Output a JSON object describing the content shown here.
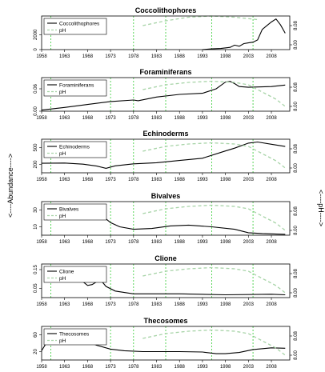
{
  "figure": {
    "left_label": "<----Abundance---->",
    "right_label": "<----pH---->"
  },
  "style": {
    "abundance_color": "#000000",
    "ph_color": "#a8d4a8",
    "gridline_color": "#33cc33"
  },
  "x_ticks": [
    "1958",
    "1963",
    "1968",
    "1973",
    "1978",
    "1983",
    "1988",
    "1993",
    "1998",
    "2003",
    "2008"
  ],
  "chart_data": [
    {
      "type": "line",
      "title": "Coccolithophores",
      "legend": [
        "Coccolithophores",
        "pH"
      ],
      "xlim": [
        1958,
        2012
      ],
      "ylim": [
        0,
        4500
      ],
      "y_ticks": [
        "0",
        "2000"
      ],
      "y2lim": [
        7.98,
        8.12
      ],
      "y2_ticks": [
        "8.00",
        "8.08"
      ],
      "vlines": [
        1960,
        1978,
        1985,
        1995,
        2004
      ],
      "series": [
        {
          "name": "Coccolithophores",
          "axis": "left",
          "x": [
            1993,
            1995,
            1997,
            1999,
            2000,
            2001,
            2002,
            2003,
            2004,
            2005,
            2006,
            2007,
            2008,
            2009,
            2010,
            2011
          ],
          "y": [
            0,
            100,
            150,
            300,
            600,
            450,
            800,
            900,
            1000,
            1300,
            2700,
            3200,
            3700,
            4100,
            3300,
            2200
          ]
        },
        {
          "name": "pH",
          "axis": "right",
          "x": [
            1980,
            1985,
            1990,
            1995,
            2000,
            2005
          ],
          "y": [
            8.08,
            8.1,
            8.115,
            8.12,
            8.115,
            8.105
          ]
        }
      ]
    },
    {
      "type": "line",
      "title": "Foraminiferans",
      "legend": [
        "Foraminiferans",
        "pH"
      ],
      "xlim": [
        1958,
        2012
      ],
      "ylim": [
        0,
        0.09
      ],
      "y_ticks": [
        "0.00",
        "0.06"
      ],
      "y2lim": [
        7.98,
        8.12
      ],
      "y2_ticks": [
        "8.00",
        "8.08"
      ],
      "vlines": [
        1960,
        1973,
        1978,
        1985,
        1995,
        2004
      ],
      "series": [
        {
          "name": "Foraminiferans",
          "axis": "left",
          "x": [
            1958,
            1963,
            1968,
            1973,
            1978,
            1979,
            1983,
            1988,
            1993,
            1996,
            1998,
            1999,
            2000,
            2001,
            2003,
            2008,
            2011
          ],
          "y": [
            0.003,
            0.01,
            0.018,
            0.026,
            0.03,
            0.028,
            0.038,
            0.045,
            0.048,
            0.06,
            0.078,
            0.08,
            0.074,
            0.066,
            0.064,
            0.066,
            0.07
          ]
        },
        {
          "name": "pH",
          "axis": "right",
          "x": [
            1980,
            1985,
            1990,
            1995,
            2000,
            2003,
            2006,
            2009,
            2011
          ],
          "y": [
            8.07,
            8.09,
            8.1,
            8.105,
            8.1,
            8.09,
            8.06,
            8.03,
            8.0
          ]
        }
      ]
    },
    {
      "type": "line",
      "title": "Echinoderms",
      "legend": [
        "Echinoderms",
        "pH"
      ],
      "xlim": [
        1958,
        2012
      ],
      "ylim": [
        50,
        650
      ],
      "y_ticks": [
        "200",
        "500"
      ],
      "y2lim": [
        7.98,
        8.12
      ],
      "y2_ticks": [
        "8.00",
        "8.08"
      ],
      "vlines": [
        1960,
        1973,
        1978,
        1985,
        1995,
        2004
      ],
      "series": [
        {
          "name": "Echinoderms",
          "axis": "left",
          "x": [
            1958,
            1963,
            1967,
            1970,
            1972,
            1974,
            1978,
            1983,
            1988,
            1993,
            1998,
            2000,
            2003,
            2005,
            2008,
            2011
          ],
          "y": [
            220,
            225,
            205,
            170,
            130,
            175,
            210,
            230,
            270,
            310,
            440,
            490,
            580,
            600,
            560,
            520
          ]
        },
        {
          "name": "pH",
          "axis": "right",
          "x": [
            1980,
            1985,
            1990,
            1995,
            2000,
            2003,
            2006,
            2009,
            2011
          ],
          "y": [
            8.07,
            8.09,
            8.1,
            8.105,
            8.1,
            8.09,
            8.06,
            8.03,
            8.0
          ]
        }
      ]
    },
    {
      "type": "line",
      "title": "Bivalves",
      "legend": [
        "Bivalves",
        "pH"
      ],
      "xlim": [
        1958,
        2012
      ],
      "ylim": [
        0,
        40
      ],
      "y_ticks": [
        "10",
        "30"
      ],
      "y2lim": [
        7.98,
        8.12
      ],
      "y2_ticks": [
        "8.00",
        "8.08"
      ],
      "vlines": [
        1960,
        1973,
        1978,
        1985,
        1995,
        2004
      ],
      "series": [
        {
          "name": "Bivalves",
          "axis": "left",
          "x": [
            1965,
            1968,
            1971,
            1973,
            1975,
            1978,
            1982,
            1986,
            1990,
            1995,
            2000,
            2003,
            2006,
            2011
          ],
          "y": [
            33,
            30,
            24,
            15,
            10,
            7,
            8,
            11,
            12,
            10,
            7,
            3,
            2,
            1
          ]
        },
        {
          "name": "pH",
          "axis": "right",
          "x": [
            1980,
            1985,
            1990,
            1995,
            2000,
            2003,
            2006,
            2009,
            2011
          ],
          "y": [
            8.07,
            8.09,
            8.1,
            8.105,
            8.1,
            8.09,
            8.06,
            8.03,
            8.0
          ]
        }
      ]
    },
    {
      "type": "line",
      "title": "Clione",
      "legend": [
        "Clione",
        "pH"
      ],
      "xlim": [
        1958,
        2012
      ],
      "ylim": [
        0,
        0.18
      ],
      "y_ticks": [
        "0.05",
        "0.15"
      ],
      "y2lim": [
        7.98,
        8.12
      ],
      "y2_ticks": [
        "8.00",
        "8.08"
      ],
      "vlines": [
        1960,
        1973,
        1978,
        1985,
        1995,
        2004
      ],
      "series": [
        {
          "name": "Clione",
          "axis": "left",
          "x": [
            1965,
            1966,
            1967,
            1968,
            1969,
            1970,
            1971,
            1972,
            1974,
            1978,
            1988,
            1998,
            2008,
            2011
          ],
          "y": [
            0.13,
            0.11,
            0.085,
            0.065,
            0.07,
            0.085,
            0.09,
            0.06,
            0.035,
            0.02,
            0.02,
            0.015,
            0.018,
            0.015
          ]
        },
        {
          "name": "pH",
          "axis": "right",
          "x": [
            1980,
            1985,
            1990,
            1995,
            2000,
            2003,
            2006,
            2009,
            2011
          ],
          "y": [
            8.07,
            8.09,
            8.1,
            8.105,
            8.1,
            8.09,
            8.06,
            8.03,
            8.0
          ]
        }
      ]
    },
    {
      "type": "line",
      "title": "Thecosomes",
      "legend": [
        "Thecosomes",
        "pH"
      ],
      "xlim": [
        1958,
        2012
      ],
      "ylim": [
        0,
        80
      ],
      "y_ticks": [
        "20",
        "60"
      ],
      "y2lim": [
        7.98,
        8.12
      ],
      "y2_ticks": [
        "8.00",
        "8.08"
      ],
      "vlines": [
        1960,
        1973,
        1978,
        1985,
        1995,
        2004
      ],
      "series": [
        {
          "name": "Thecosomes",
          "axis": "left",
          "x": [
            1958,
            1959,
            1963,
            1966,
            1968,
            1970,
            1973,
            1976,
            1980,
            1988,
            1993,
            1996,
            1998,
            2001,
            2004,
            2008,
            2011
          ],
          "y": [
            22,
            40,
            55,
            48,
            44,
            35,
            26,
            22,
            20,
            20,
            19,
            15,
            15,
            18,
            25,
            29,
            28
          ]
        },
        {
          "name": "pH",
          "axis": "right",
          "x": [
            1980,
            1985,
            1990,
            1995,
            2000,
            2003,
            2006,
            2009,
            2011
          ],
          "y": [
            8.07,
            8.09,
            8.1,
            8.105,
            8.1,
            8.09,
            8.06,
            8.03,
            8.0
          ]
        }
      ]
    }
  ]
}
